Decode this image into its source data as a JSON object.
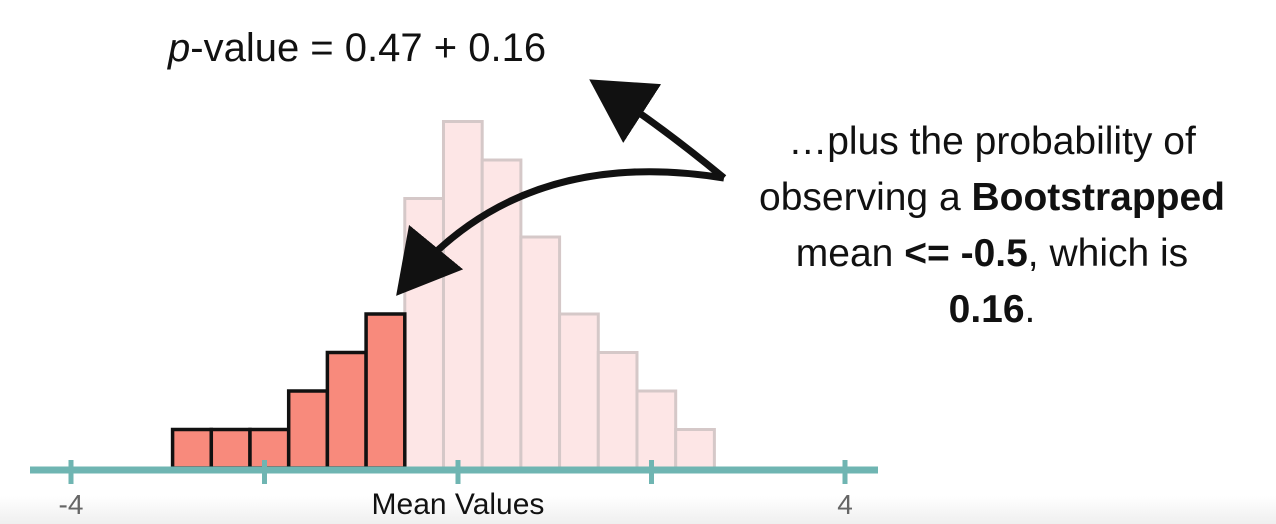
{
  "formula": {
    "p_symbol": "p",
    "rest": "-value = 0.47 + 0.16"
  },
  "callout": {
    "line1": "…plus the probability of",
    "line2_pre": "observing a ",
    "line2_bold": "Bootstrapped",
    "line3_pre": "mean ",
    "line3_bold": "<= -0.5",
    "line3_post": ", which is",
    "line4_bold": "0.16",
    "line4_post": "."
  },
  "colors": {
    "highlight_fill": "#f88a7c",
    "highlight_stroke": "#111111",
    "faded_fill": "#fde6e6",
    "faded_stroke": "#d5c8c8",
    "axis": "#6fb5b2",
    "arrow": "#111111"
  },
  "chart_data": {
    "type": "bar",
    "xlabel": "Mean Values",
    "xlim": [
      -4,
      4
    ],
    "tick_values": [
      -4,
      -2,
      0,
      2,
      4
    ],
    "tick_labels": [
      "-4",
      "",
      "",
      "",
      "4"
    ],
    "bin_edges": [
      -2.95,
      -2.55,
      -2.15,
      -1.75,
      -1.35,
      -0.95,
      -0.55,
      -0.15,
      0.25,
      0.65,
      1.05,
      1.45,
      1.85,
      2.25,
      2.65
    ],
    "counts": [
      1,
      1,
      1,
      2,
      3,
      4,
      7,
      9,
      8,
      6,
      4,
      3,
      2,
      1
    ],
    "highlighted": [
      true,
      true,
      true,
      true,
      true,
      true,
      false,
      false,
      false,
      false,
      false,
      false,
      false,
      false
    ]
  }
}
